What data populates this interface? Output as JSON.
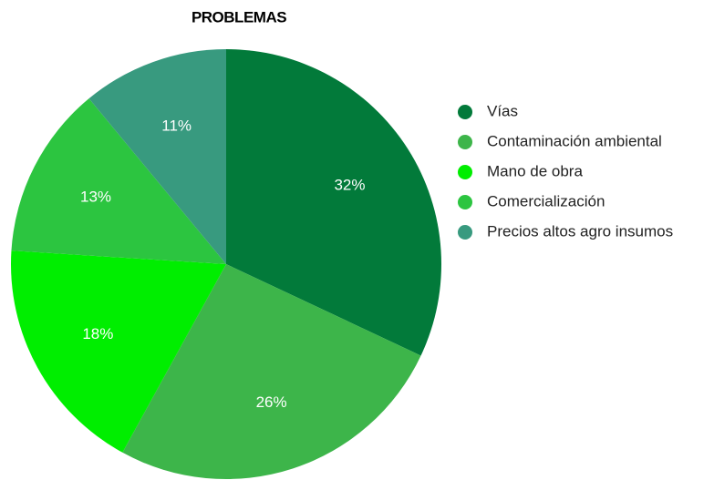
{
  "chart_data": {
    "type": "pie",
    "title": "PROBLEMAS",
    "categories": [
      "Vías",
      "Contaminación ambiental",
      "Mano de obra",
      "Comercialización",
      "Precios altos agro insumos"
    ],
    "values": [
      32,
      26,
      18,
      13,
      11
    ],
    "value_labels": [
      "32%",
      "26%",
      "18%",
      "13%",
      "11%"
    ],
    "colors": [
      "#027a3a",
      "#3db54a",
      "#00ee00",
      "#2cc540",
      "#389a7f"
    ],
    "legend": "right"
  }
}
